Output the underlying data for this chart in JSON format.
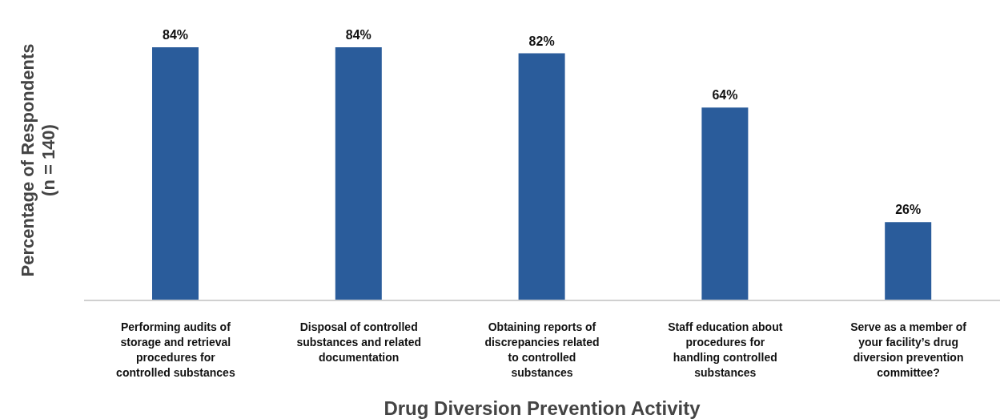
{
  "chart_data": {
    "type": "bar",
    "xlabel": "Drug Diversion Prevention Activity",
    "ylabel": "Percentage of Respondents\n(n = 140)",
    "categories": [
      "Performing audits of storage and retrieval procedures for controlled substances",
      "Disposal of controlled substances and related documentation",
      "Obtaining reports of discrepancies related to controlled substances",
      "Staff education about procedures for handling controlled substances",
      "Serve as a member of your facility’s drug diversion prevention committee?"
    ],
    "values": [
      84,
      84,
      82,
      64,
      26
    ],
    "color": "#2a5c9b",
    "data_labels": true,
    "value_labels": [
      "84%",
      "84%",
      "82%",
      "64%",
      "26%"
    ]
  }
}
